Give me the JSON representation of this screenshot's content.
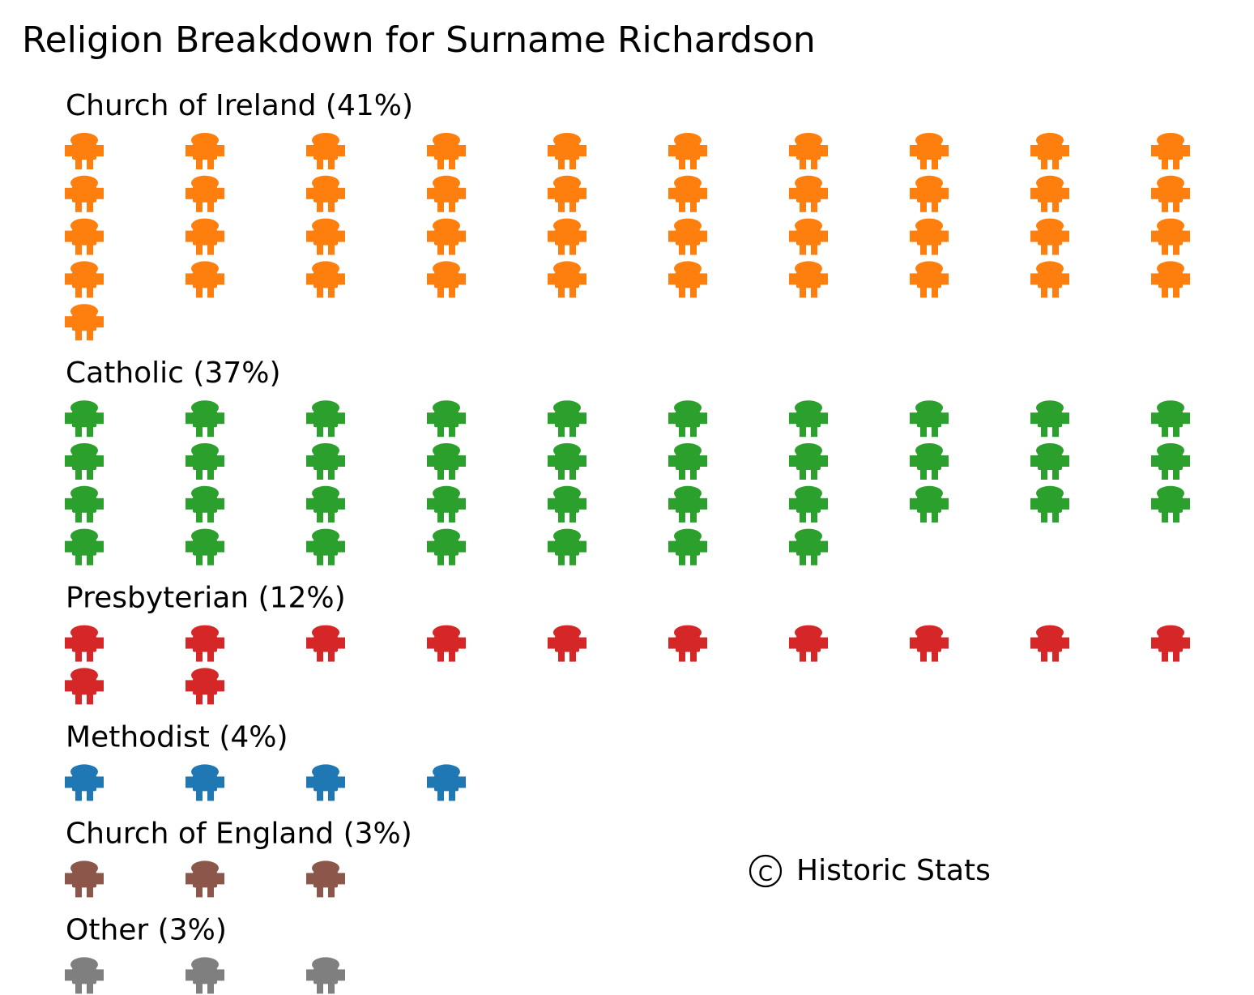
{
  "chart_data": {
    "type": "pictogram",
    "title": "Religion Breakdown for Surname Richardson",
    "icon": "person-icon",
    "icons_per_row": 10,
    "categories": [
      {
        "name": "Church of Ireland",
        "label": "Church of Ireland (41%)",
        "percent": 41,
        "icons": 41,
        "color": "#ff7f0e"
      },
      {
        "name": "Catholic",
        "label": "Catholic (37%)",
        "percent": 37,
        "icons": 37,
        "color": "#2ca02c"
      },
      {
        "name": "Presbyterian",
        "label": "Presbyterian (12%)",
        "percent": 12,
        "icons": 12,
        "color": "#d62728"
      },
      {
        "name": "Methodist",
        "label": "Methodist (4%)",
        "percent": 4,
        "icons": 4,
        "color": "#1f77b4"
      },
      {
        "name": "Church of England",
        "label": "Church of England (3%)",
        "percent": 3,
        "icons": 3,
        "color": "#8c564b"
      },
      {
        "name": "Other",
        "label": "Other (3%)",
        "percent": 3,
        "icons": 3,
        "color": "#7f7f7f"
      }
    ],
    "credit": {
      "symbol": "C",
      "text": "Historic Stats"
    }
  }
}
